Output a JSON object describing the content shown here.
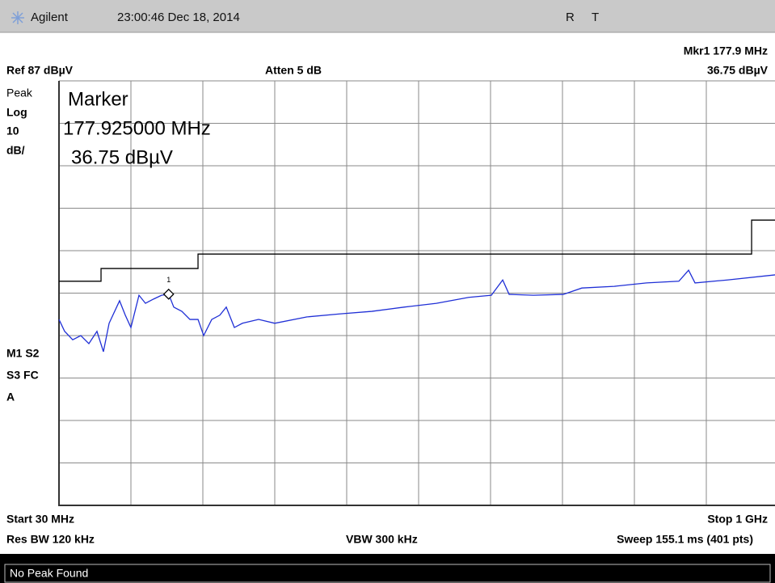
{
  "header": {
    "brand": "Agilent",
    "timestamp": "23:00:46  Dec 18, 2014",
    "flags": [
      "R",
      "T"
    ]
  },
  "settings": {
    "marker_readout": "Mkr1  177.9 MHz",
    "marker_level": "36.75 dBµV",
    "reference": "Ref 87 dBµV",
    "attenuation": "Atten 5 dB",
    "scale_lines": [
      "Peak",
      "Log",
      "10",
      "dB/"
    ],
    "side_lines": [
      "M1  S2",
      "S3  FC",
      "A"
    ]
  },
  "marker_box": {
    "title": "Marker",
    "frequency": "177.925000 MHz",
    "level": "36.75 dBµV"
  },
  "footer": {
    "start": "Start 30 MHz",
    "stop": "Stop 1 GHz",
    "rbw": "Res BW 120 kHz",
    "vbw": "VBW 300 kHz",
    "sweep": "Sweep 155.1 ms (401 pts)"
  },
  "status": "No Peak Found",
  "chart_data": {
    "type": "line",
    "xlim": [
      30,
      1000
    ],
    "ylim": [
      -13,
      87
    ],
    "xticks": [
      30,
      127,
      224,
      321,
      418,
      515,
      612,
      709,
      806,
      903,
      1000
    ],
    "yticks": [
      -13,
      -3,
      7,
      17,
      27,
      37,
      47,
      57,
      67,
      77,
      87
    ],
    "grid": true,
    "series": [
      {
        "name": "trace",
        "color": "#1f2fd6",
        "x": [
          30,
          37.6,
          48.5,
          59.4,
          70.3,
          81.2,
          89.9,
          97.6,
          111.7,
          119.4,
          127,
          137.9,
          146.6,
          157.5,
          168.4,
          177.9,
          184.8,
          195.7,
          206.6,
          217.5,
          225.1,
          236,
          246.9,
          255.6,
          266.5,
          277.4,
          299.2,
          321,
          364.6,
          408.2,
          451.8,
          495.4,
          539,
          582.6,
          613.1,
          628.4,
          637.1,
          669.8,
          710.1,
          735.2,
          778.8,
          822.4,
          866,
          879.1,
          887.8,
          931.4,
          995.7
        ],
        "values": [
          30.8,
          28,
          26,
          27,
          25.1,
          28,
          23.2,
          29.9,
          35.2,
          31.8,
          28.9,
          36.5,
          34.6,
          35.6,
          36.5,
          36.75,
          33.7,
          32.7,
          30.8,
          30.8,
          27,
          30.8,
          31.8,
          33.7,
          28.9,
          29.9,
          30.8,
          29.9,
          31.4,
          32.1,
          32.7,
          33.7,
          34.6,
          36,
          36.5,
          40.1,
          36.7,
          36.5,
          36.7,
          38.2,
          38.6,
          39.4,
          39.8,
          42.4,
          39.4,
          40.1,
          41.3
        ]
      },
      {
        "name": "limit",
        "color": "#000000",
        "x": [
          30,
          86.7,
          86.7,
          217.5,
          217.5,
          964.1,
          964.1,
          1000
        ],
        "values": [
          39.8,
          39.8,
          42.8,
          42.8,
          46.2,
          46.2,
          54.2,
          54.2
        ]
      }
    ],
    "marker": {
      "label": "1",
      "x": 177.925,
      "y": 36.75
    }
  }
}
